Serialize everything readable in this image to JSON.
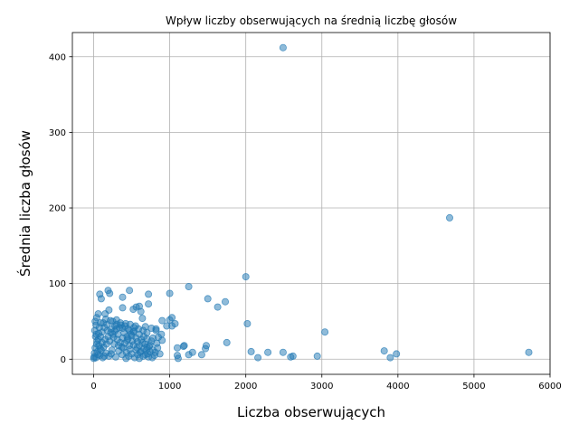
{
  "chart_data": {
    "type": "scatter",
    "title": "Wpływ liczby obserwujących na średnią liczbę głosów",
    "xlabel": "Liczba obserwujących",
    "ylabel": "Średnia liczba głosów",
    "xlim": [
      -280,
      6000
    ],
    "ylim": [
      -20,
      432
    ],
    "xticks": [
      0,
      1000,
      2000,
      3000,
      4000,
      5000,
      6000
    ],
    "yticks": [
      0,
      100,
      200,
      300,
      400
    ],
    "xtick_labels": [
      "0",
      "1000",
      "2000",
      "3000",
      "4000",
      "5000",
      "6000"
    ],
    "ytick_labels": [
      "0",
      "100",
      "200",
      "300",
      "400"
    ],
    "grid": true,
    "marker_color": "#1f77b4",
    "marker_alpha": 0.5,
    "series": [
      {
        "points": [
          [
            2490,
            412
          ],
          [
            4680,
            187
          ],
          [
            5720,
            9
          ],
          [
            2000,
            109
          ],
          [
            1250,
            96
          ],
          [
            470,
            91
          ],
          [
            190,
            91
          ],
          [
            210,
            87
          ],
          [
            80,
            86
          ],
          [
            720,
            86
          ],
          [
            1000,
            87
          ],
          [
            1500,
            80
          ],
          [
            1730,
            76
          ],
          [
            100,
            80
          ],
          [
            380,
            82
          ],
          [
            1630,
            69
          ],
          [
            720,
            73
          ],
          [
            200,
            65
          ],
          [
            380,
            68
          ],
          [
            560,
            69
          ],
          [
            600,
            70
          ],
          [
            520,
            66
          ],
          [
            620,
            63
          ],
          [
            1030,
            55
          ],
          [
            1000,
            52
          ],
          [
            900,
            51
          ],
          [
            640,
            54
          ],
          [
            1070,
            47
          ],
          [
            2020,
            47
          ],
          [
            960,
            44
          ],
          [
            1030,
            44
          ],
          [
            820,
            40
          ],
          [
            3040,
            36
          ],
          [
            890,
            33
          ],
          [
            850,
            29
          ],
          [
            780,
            28
          ],
          [
            900,
            25
          ],
          [
            830,
            21
          ],
          [
            740,
            19
          ],
          [
            1750,
            22
          ],
          [
            1480,
            18
          ],
          [
            1470,
            14
          ],
          [
            1190,
            18
          ],
          [
            1180,
            17
          ],
          [
            1100,
            15
          ],
          [
            1300,
            9
          ],
          [
            1250,
            6
          ],
          [
            1100,
            5
          ],
          [
            1110,
            1
          ],
          [
            1420,
            6
          ],
          [
            2070,
            10
          ],
          [
            2290,
            9
          ],
          [
            2490,
            9
          ],
          [
            2160,
            2
          ],
          [
            2590,
            3
          ],
          [
            2620,
            4
          ],
          [
            2940,
            4
          ],
          [
            3820,
            11
          ],
          [
            3980,
            7
          ],
          [
            3900,
            2
          ],
          [
            30,
            45
          ],
          [
            40,
            55
          ],
          [
            60,
            60
          ],
          [
            150,
            60
          ],
          [
            250,
            50
          ],
          [
            300,
            52
          ],
          [
            350,
            48
          ],
          [
            420,
            47
          ],
          [
            480,
            46
          ],
          [
            550,
            44
          ],
          [
            680,
            43
          ],
          [
            760,
            41
          ],
          [
            820,
            38
          ],
          [
            450,
            40
          ],
          [
            520,
            36
          ],
          [
            600,
            33
          ],
          [
            660,
            30
          ],
          [
            700,
            27
          ],
          [
            640,
            22
          ],
          [
            700,
            16
          ],
          [
            740,
            10
          ],
          [
            680,
            6
          ],
          [
            720,
            3
          ],
          [
            600,
            1
          ],
          [
            560,
            12
          ],
          [
            510,
            24
          ],
          [
            470,
            18
          ],
          [
            440,
            30
          ],
          [
            400,
            35
          ],
          [
            340,
            42
          ],
          [
            280,
            44
          ],
          [
            230,
            40
          ],
          [
            180,
            38
          ],
          [
            140,
            42
          ],
          [
            110,
            36
          ],
          [
            90,
            30
          ],
          [
            60,
            26
          ],
          [
            40,
            20
          ],
          [
            20,
            15
          ],
          [
            10,
            8
          ],
          [
            5,
            3
          ],
          [
            2,
            1
          ],
          [
            50,
            10
          ],
          [
            80,
            5
          ],
          [
            120,
            2
          ],
          [
            160,
            8
          ],
          [
            200,
            4
          ],
          [
            240,
            12
          ],
          [
            270,
            20
          ],
          [
            310,
            26
          ],
          [
            350,
            22
          ],
          [
            390,
            15
          ],
          [
            430,
            9
          ],
          [
            460,
            4
          ],
          [
            500,
            7
          ],
          [
            540,
            2
          ],
          [
            580,
            6
          ],
          [
            620,
            10
          ],
          [
            660,
            14
          ],
          [
            600,
            18
          ],
          [
            560,
            28
          ],
          [
            500,
            31
          ],
          [
            440,
            25
          ],
          [
            380,
            28
          ],
          [
            320,
            33
          ],
          [
            260,
            29
          ],
          [
            210,
            24
          ],
          [
            170,
            20
          ],
          [
            130,
            16
          ],
          [
            100,
            12
          ],
          [
            70,
            18
          ],
          [
            45,
            24
          ],
          [
            25,
            30
          ],
          [
            15,
            38
          ],
          [
            35,
            33
          ],
          [
            75,
            42
          ],
          [
            125,
            48
          ],
          [
            175,
            46
          ],
          [
            225,
            35
          ],
          [
            275,
            37
          ],
          [
            325,
            18
          ],
          [
            375,
            6
          ],
          [
            425,
            1
          ],
          [
            475,
            13
          ],
          [
            525,
            19
          ],
          [
            575,
            23
          ],
          [
            625,
            26
          ],
          [
            675,
            20
          ],
          [
            710,
            7
          ],
          [
            780,
            12
          ],
          [
            800,
            5
          ],
          [
            760,
            24
          ],
          [
            700,
            35
          ],
          [
            650,
            38
          ],
          [
            590,
            40
          ],
          [
            530,
            42
          ],
          [
            470,
            38
          ],
          [
            410,
            44
          ],
          [
            360,
            45
          ],
          [
            300,
            40
          ],
          [
            250,
            33
          ],
          [
            190,
            30
          ],
          [
            150,
            26
          ],
          [
            110,
            22
          ],
          [
            85,
            14
          ],
          [
            55,
            6
          ],
          [
            30,
            2
          ],
          [
            65,
            34
          ],
          [
            140,
            4
          ],
          [
            230,
            7
          ],
          [
            290,
            3
          ],
          [
            330,
            11
          ],
          [
            370,
            16
          ],
          [
            410,
            21
          ],
          [
            450,
            27
          ],
          [
            490,
            33
          ],
          [
            530,
            37
          ],
          [
            570,
            15
          ],
          [
            610,
            9
          ],
          [
            650,
            4
          ],
          [
            690,
            12
          ],
          [
            730,
            17
          ],
          [
            770,
            2
          ],
          [
            810,
            9
          ],
          [
            840,
            15
          ],
          [
            870,
            7
          ],
          [
            20,
            50
          ],
          [
            160,
            53
          ],
          [
            220,
            51
          ],
          [
            90,
            48
          ],
          [
            300,
            46
          ],
          [
            380,
            41
          ]
        ]
      }
    ]
  }
}
